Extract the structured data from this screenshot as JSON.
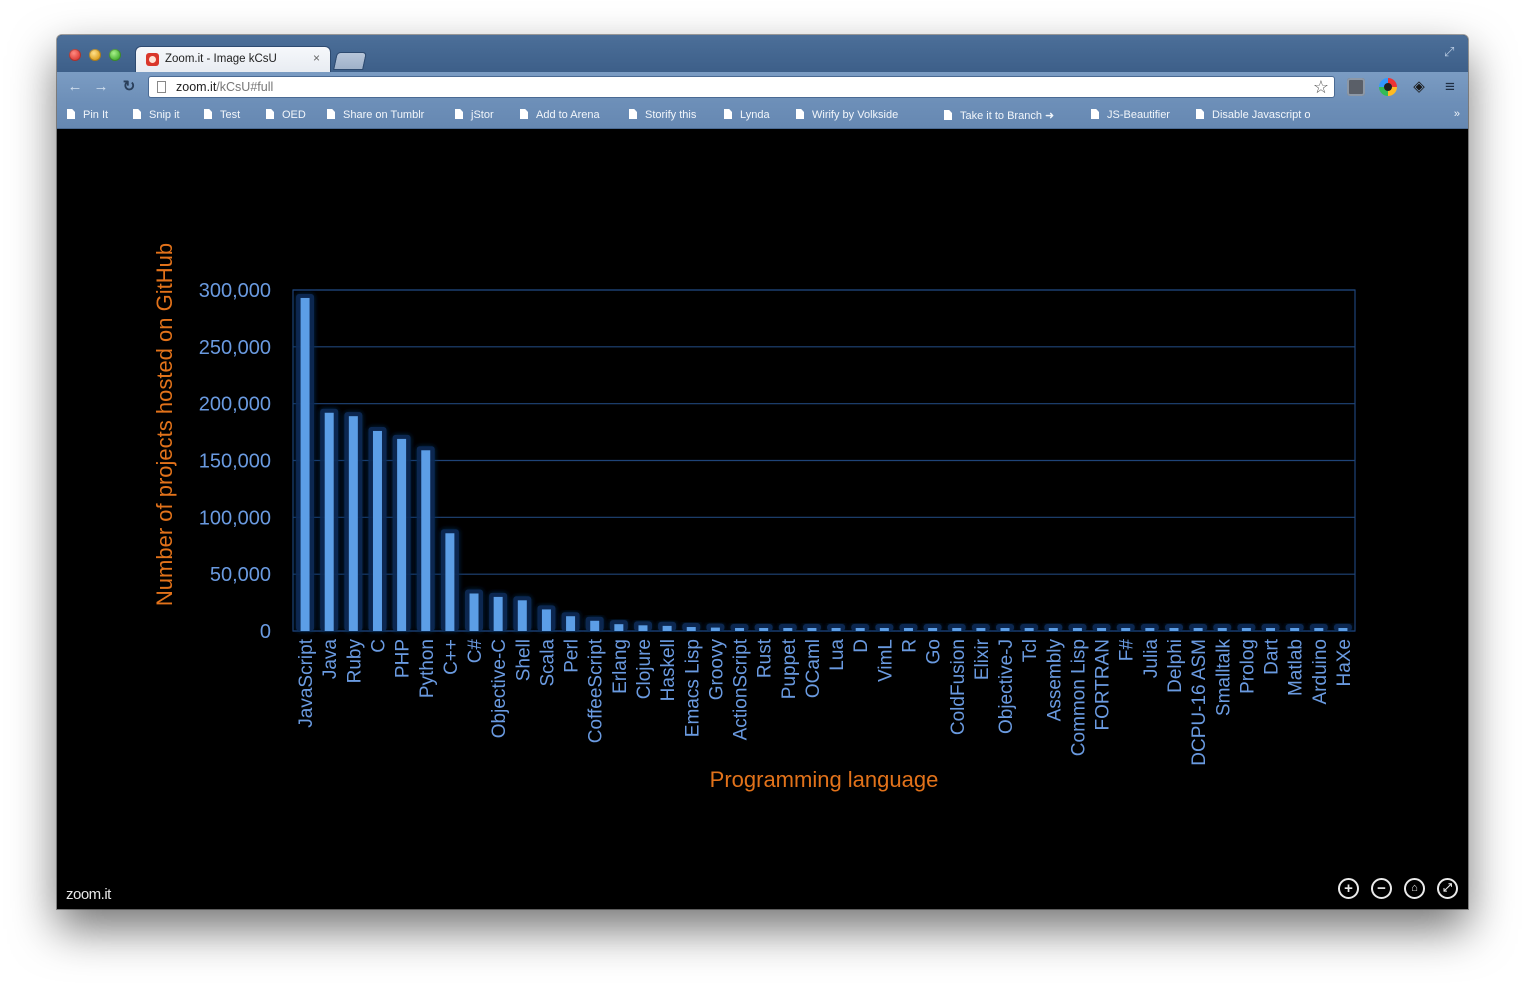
{
  "browser": {
    "tab_title": "Zoom.it - Image kCsU",
    "tab_close": "×",
    "url_host": "zoom.it",
    "url_path": "/kCsU#full",
    "bookmarks": [
      "Pin It",
      "Snip it",
      "Test",
      "OED",
      "Share on Tumblr",
      "jStor",
      "Add to Arena",
      "Storify this",
      "Lynda",
      "Wirify by Volkside",
      "Take it to Branch ➜",
      "JS-Beautifier",
      "Disable Javascript o"
    ],
    "bookmarks_more": "»"
  },
  "viewer": {
    "logo": "zoom.it",
    "controls": {
      "zoom_in": "+",
      "zoom_out": "−",
      "home": "⌂",
      "fullscreen": "⤢"
    }
  },
  "colors": {
    "bar": "#5c9ee6",
    "axis_text": "#6a9ae0",
    "label_text": "#e2721a",
    "grid": "#1f4478"
  },
  "chart_data": {
    "type": "bar",
    "xlabel": "Programming language",
    "ylabel": "Number of projects hosted on GitHub",
    "ylim": [
      0,
      300000
    ],
    "yticks": [
      "0",
      "50,000",
      "100,000",
      "150,000",
      "200,000",
      "250,000",
      "300,000"
    ],
    "grid": true,
    "categories": [
      "JavaScript",
      "Java",
      "Ruby",
      "C",
      "PHP",
      "Python",
      "C++",
      "C#",
      "Objective-C",
      "Shell",
      "Scala",
      "Perl",
      "CoffeeScript",
      "Erlang",
      "Clojure",
      "Haskell",
      "Emacs Lisp",
      "Groovy",
      "ActionScript",
      "Rust",
      "Puppet",
      "OCaml",
      "Lua",
      "D",
      "VimL",
      "R",
      "Go",
      "ColdFusion",
      "Elixir",
      "Objective-J",
      "Tcl",
      "Assembly",
      "Common Lisp",
      "FORTRAN",
      "F#",
      "Julia",
      "Delphi",
      "DCPU-16 ASM",
      "Smalltalk",
      "Prolog",
      "Dart",
      "Matlab",
      "Arduino",
      "HaXe"
    ],
    "values": [
      293000,
      192000,
      189000,
      176000,
      169000,
      159000,
      86000,
      33000,
      30000,
      27000,
      19000,
      13000,
      9000,
      6000,
      5000,
      4500,
      3500,
      3000,
      2500,
      2000,
      2000,
      1500,
      1500,
      1000,
      1000,
      1000,
      1000,
      800,
      800,
      700,
      700,
      600,
      600,
      600,
      500,
      500,
      500,
      400,
      400,
      400,
      300,
      300,
      300,
      300
    ]
  }
}
